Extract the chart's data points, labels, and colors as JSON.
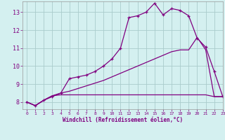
{
  "background_color": "#d4f0f0",
  "grid_color": "#aacccc",
  "line_color": "#800080",
  "marker": "+",
  "xlim": [
    -0.5,
    23
  ],
  "ylim": [
    7.6,
    13.6
  ],
  "yticks": [
    8,
    9,
    10,
    11,
    12,
    13
  ],
  "xticks": [
    0,
    1,
    2,
    3,
    4,
    5,
    6,
    7,
    8,
    9,
    10,
    11,
    12,
    13,
    14,
    15,
    16,
    17,
    18,
    19,
    20,
    21,
    22,
    23
  ],
  "xlabel": "Windchill (Refroidissement éolien,°C)",
  "hours": [
    0,
    1,
    2,
    3,
    4,
    5,
    6,
    7,
    8,
    9,
    10,
    11,
    12,
    13,
    14,
    15,
    16,
    17,
    18,
    19,
    20,
    21,
    22,
    23
  ],
  "line1": [
    8.0,
    7.8,
    8.1,
    8.3,
    8.5,
    9.3,
    9.4,
    9.5,
    9.7,
    10.0,
    10.4,
    11.0,
    12.7,
    12.8,
    13.0,
    13.5,
    12.85,
    13.2,
    13.1,
    12.8,
    11.55,
    11.05,
    9.7,
    8.3
  ],
  "line2": [
    8.0,
    7.8,
    8.1,
    8.35,
    8.4,
    8.4,
    8.4,
    8.4,
    8.4,
    8.4,
    8.4,
    8.4,
    8.4,
    8.4,
    8.4,
    8.4,
    8.4,
    8.4,
    8.4,
    8.4,
    8.4,
    8.4,
    8.3,
    8.3
  ],
  "line3": [
    8.0,
    7.8,
    8.1,
    8.35,
    8.5,
    8.6,
    8.75,
    8.9,
    9.05,
    9.2,
    9.4,
    9.6,
    9.8,
    10.0,
    10.2,
    10.4,
    10.6,
    10.8,
    10.9,
    10.9,
    11.6,
    10.9,
    8.3,
    8.3
  ]
}
